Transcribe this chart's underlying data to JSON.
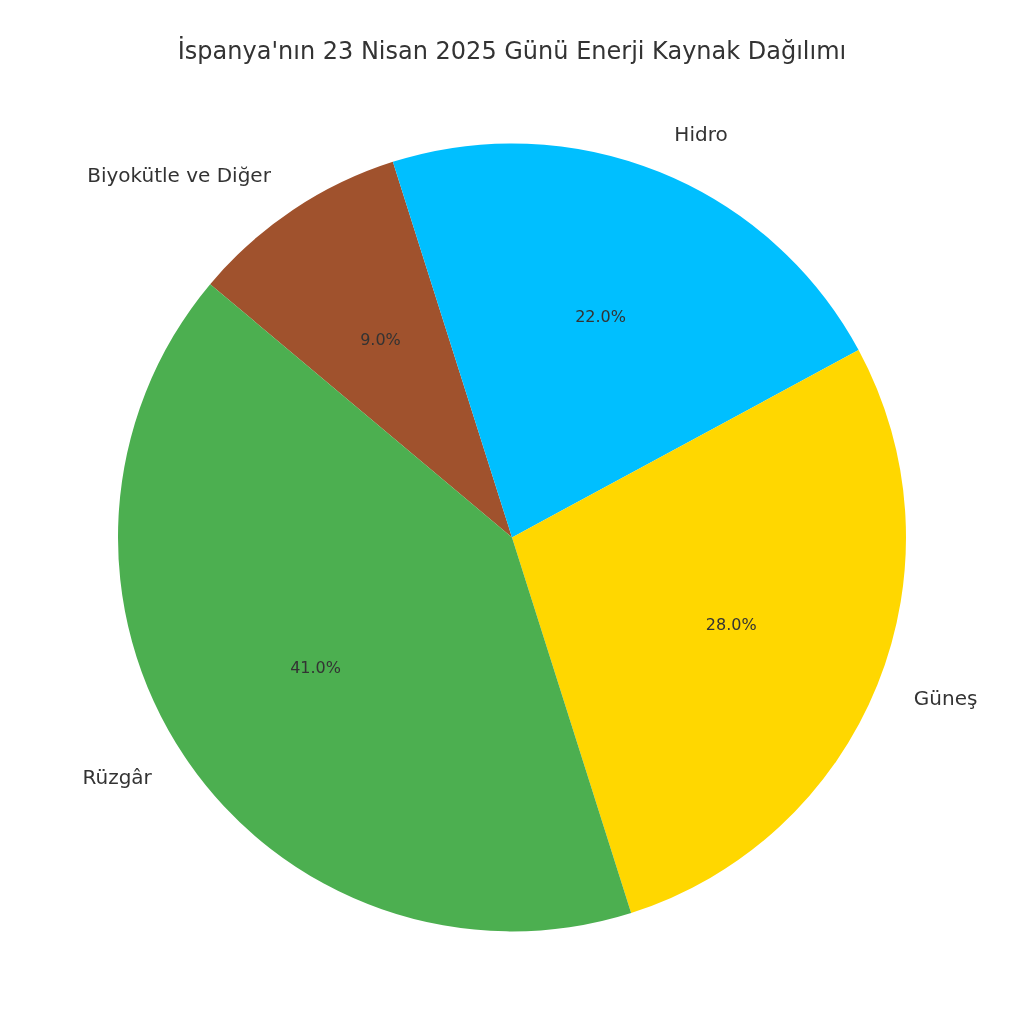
{
  "chart_data": {
    "type": "pie",
    "title": "İspanya'nın 23 Nisan 2025 Günü Enerji Kaynak Dağılımı",
    "categories": [
      "Biyokütle ve Diğer",
      "Hidro",
      "Güneş",
      "Rüzgâr"
    ],
    "values": [
      9,
      22,
      28,
      41
    ],
    "colors": [
      "#a0522d",
      "#00bfff",
      "#ffd700",
      "#4caf50"
    ],
    "value_labels": [
      "9.0%",
      "22.0%",
      "28.0%",
      "41.0%"
    ],
    "legend": false
  }
}
